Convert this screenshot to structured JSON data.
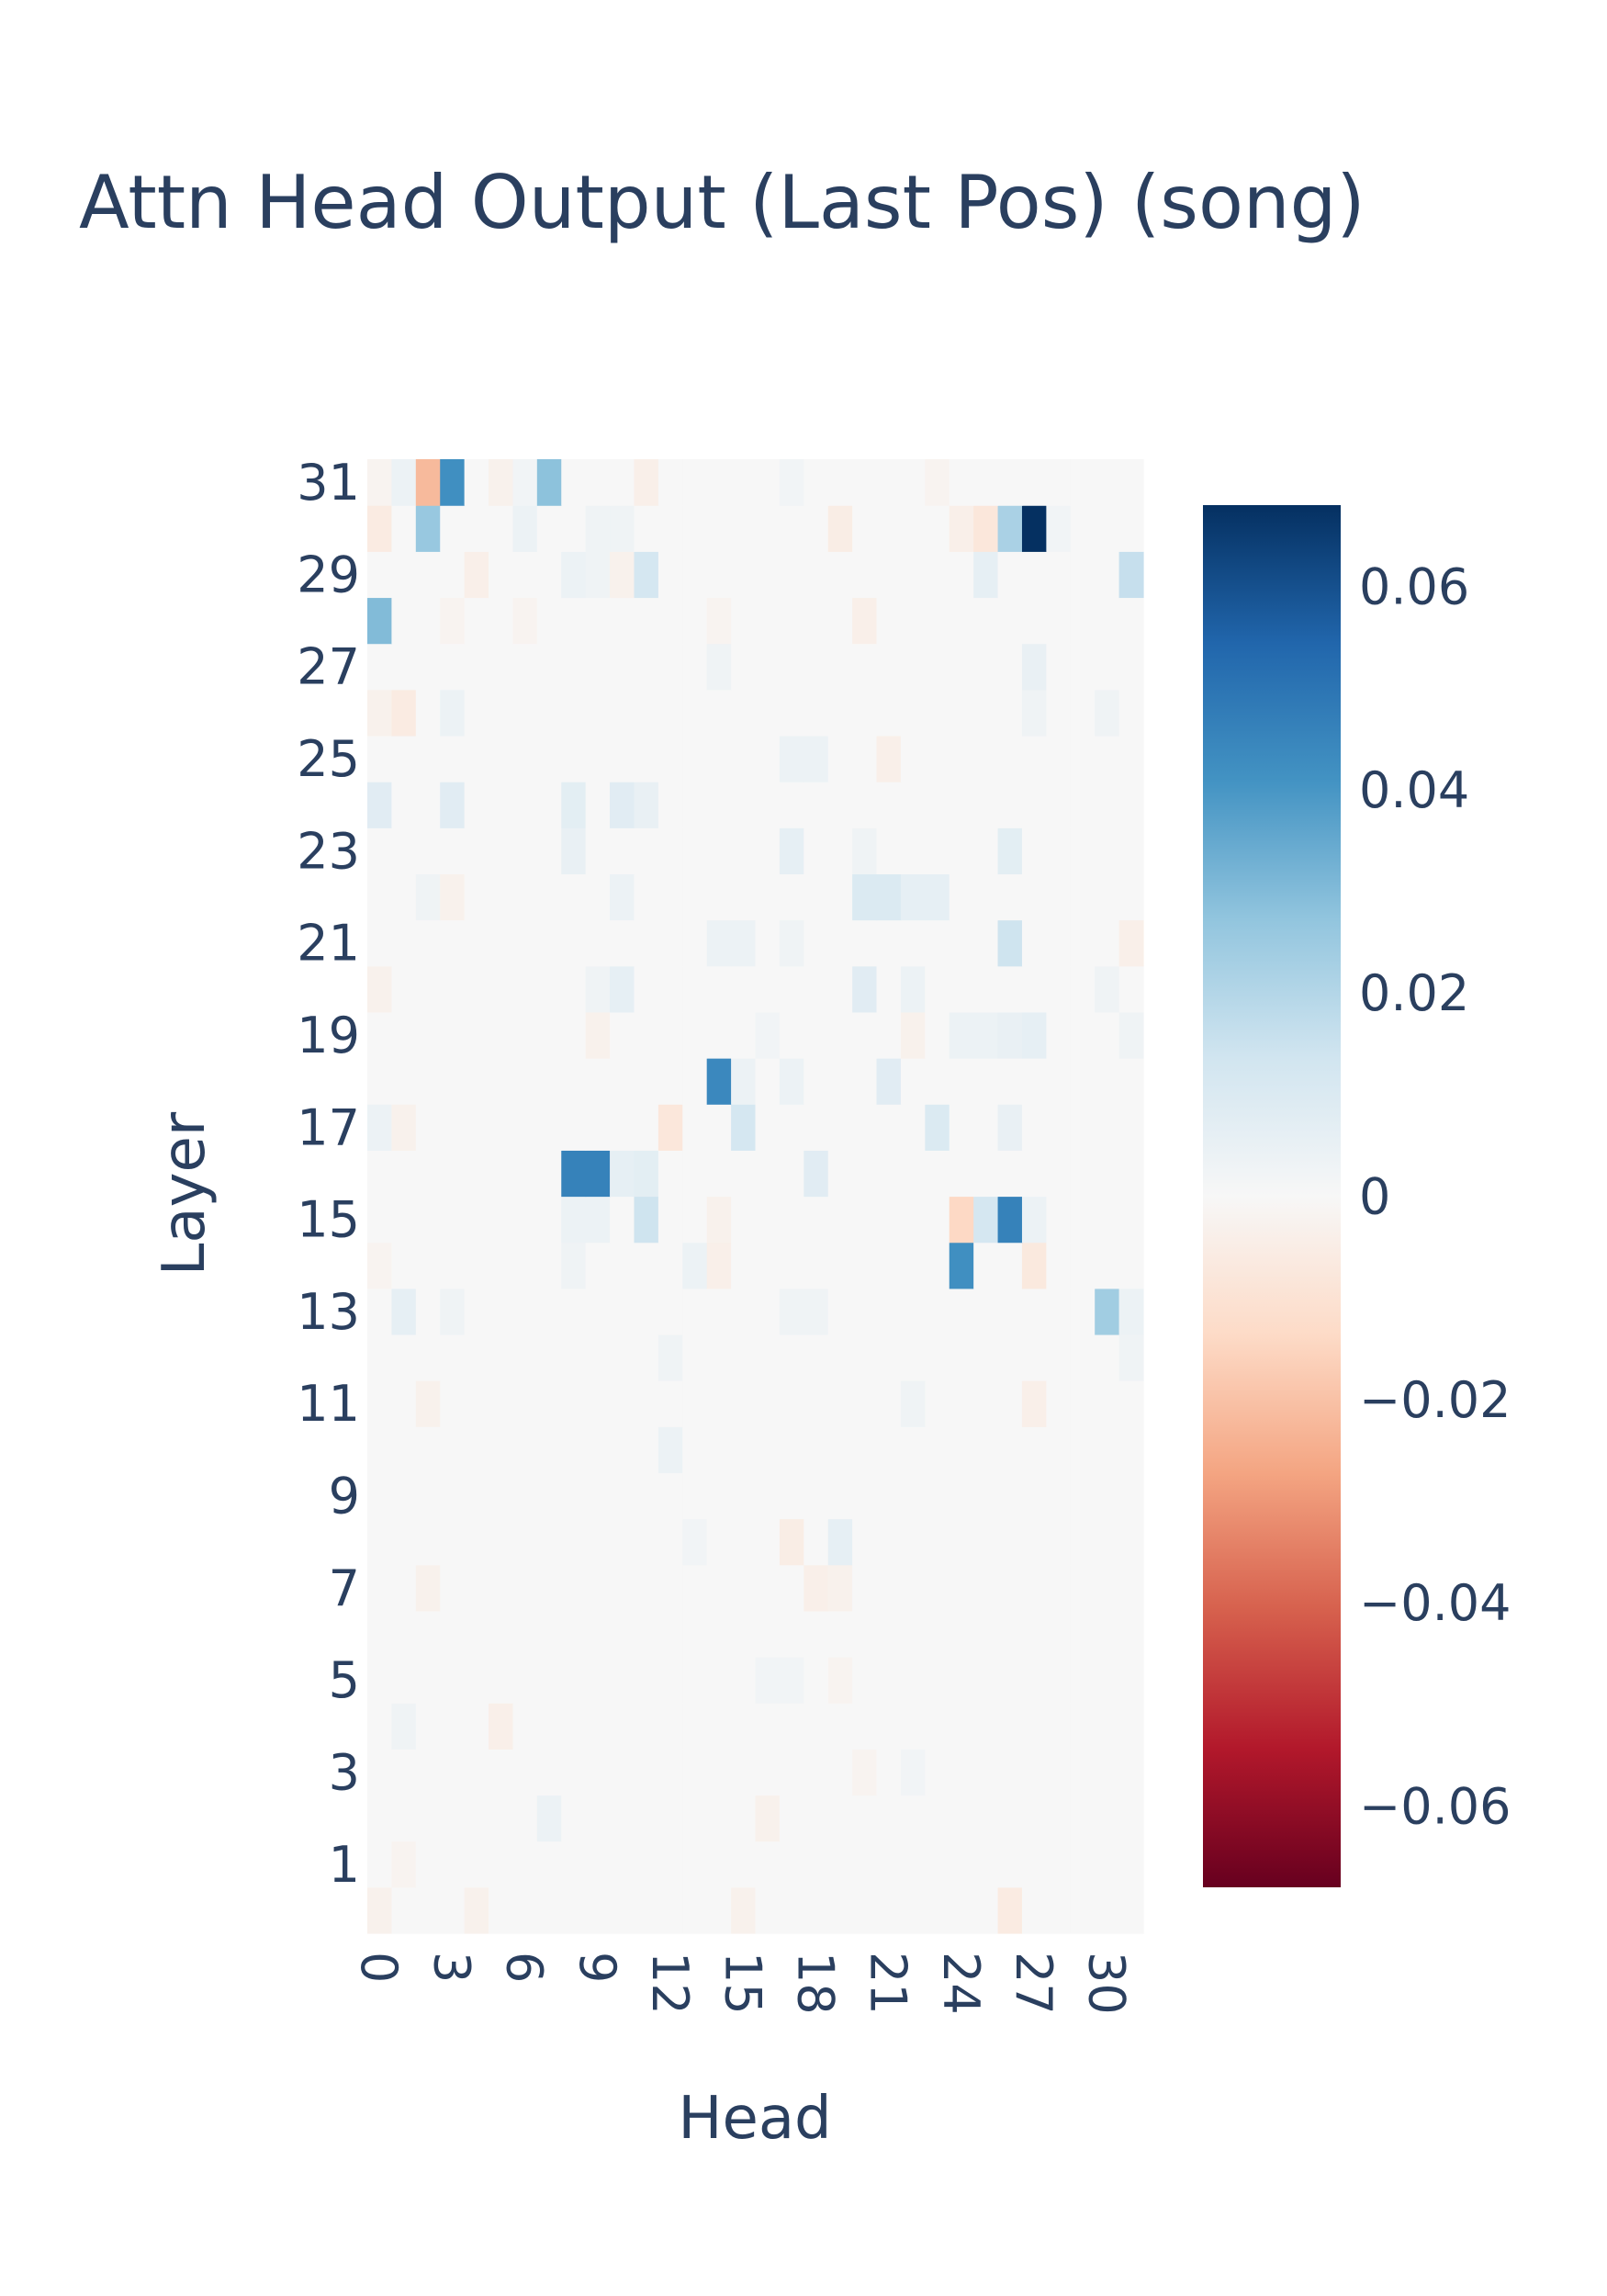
{
  "chart_data": {
    "type": "heatmap",
    "title": "Attn Head Output (Last Pos) (song)",
    "xlabel": "Head",
    "ylabel": "Layer",
    "n_x": 32,
    "n_y": 32,
    "xticks": [
      0,
      3,
      6,
      9,
      12,
      15,
      18,
      21,
      24,
      27,
      30
    ],
    "yticks": [
      1,
      3,
      5,
      7,
      9,
      11,
      13,
      15,
      17,
      19,
      21,
      23,
      25,
      27,
      29,
      31
    ],
    "zrange": [
      -0.068,
      0.068
    ],
    "colorbar_ticks": [
      {
        "value": 0.06,
        "label": "0.06"
      },
      {
        "value": 0.04,
        "label": "0.04"
      },
      {
        "value": 0.02,
        "label": "0.02"
      },
      {
        "value": 0,
        "label": "0"
      },
      {
        "value": -0.02,
        "label": "−0.02"
      },
      {
        "value": -0.04,
        "label": "−0.04"
      },
      {
        "value": -0.06,
        "label": "−0.06"
      }
    ],
    "colorscale": [
      "#67001f",
      "#b2182b",
      "#d6604d",
      "#f4a582",
      "#fddbc7",
      "#f7f7f7",
      "#d1e5f0",
      "#92c5de",
      "#4393c3",
      "#2166ac",
      "#053061"
    ],
    "cells": [
      [
        31,
        0,
        -0.002
      ],
      [
        31,
        1,
        0.004
      ],
      [
        31,
        2,
        -0.022
      ],
      [
        31,
        3,
        0.042
      ],
      [
        31,
        5,
        -0.003
      ],
      [
        31,
        6,
        0.002
      ],
      [
        31,
        7,
        0.028
      ],
      [
        31,
        11,
        -0.004
      ],
      [
        31,
        17,
        0.002
      ],
      [
        31,
        23,
        -0.002
      ],
      [
        30,
        0,
        -0.006
      ],
      [
        30,
        2,
        0.026
      ],
      [
        30,
        6,
        0.004
      ],
      [
        30,
        9,
        0.003
      ],
      [
        30,
        10,
        0.003
      ],
      [
        30,
        19,
        -0.005
      ],
      [
        30,
        24,
        -0.004
      ],
      [
        30,
        25,
        -0.008
      ],
      [
        30,
        26,
        0.022
      ],
      [
        30,
        27,
        0.068
      ],
      [
        30,
        28,
        0.002
      ],
      [
        29,
        4,
        -0.004
      ],
      [
        29,
        8,
        0.004
      ],
      [
        29,
        9,
        0.003
      ],
      [
        29,
        10,
        -0.003
      ],
      [
        29,
        11,
        0.012
      ],
      [
        29,
        25,
        0.006
      ],
      [
        29,
        31,
        0.016
      ],
      [
        28,
        0,
        0.03
      ],
      [
        28,
        3,
        -0.002
      ],
      [
        28,
        6,
        -0.002
      ],
      [
        28,
        14,
        -0.002
      ],
      [
        28,
        20,
        -0.004
      ],
      [
        27,
        14,
        0.003
      ],
      [
        27,
        27,
        0.005
      ],
      [
        26,
        0,
        -0.003
      ],
      [
        26,
        1,
        -0.006
      ],
      [
        26,
        3,
        0.004
      ],
      [
        26,
        27,
        0.003
      ],
      [
        26,
        30,
        0.003
      ],
      [
        25,
        17,
        0.004
      ],
      [
        25,
        18,
        0.004
      ],
      [
        25,
        21,
        -0.004
      ],
      [
        24,
        0,
        0.008
      ],
      [
        24,
        3,
        0.008
      ],
      [
        24,
        8,
        0.007
      ],
      [
        24,
        10,
        0.008
      ],
      [
        24,
        11,
        0.005
      ],
      [
        23,
        8,
        0.005
      ],
      [
        23,
        17,
        0.006
      ],
      [
        23,
        20,
        0.003
      ],
      [
        23,
        26,
        0.007
      ],
      [
        22,
        2,
        0.003
      ],
      [
        22,
        3,
        -0.003
      ],
      [
        22,
        10,
        0.004
      ],
      [
        22,
        20,
        0.01
      ],
      [
        22,
        21,
        0.01
      ],
      [
        22,
        22,
        0.006
      ],
      [
        22,
        23,
        0.006
      ],
      [
        21,
        14,
        0.004
      ],
      [
        21,
        15,
        0.004
      ],
      [
        21,
        17,
        0.003
      ],
      [
        21,
        26,
        0.014
      ],
      [
        21,
        31,
        -0.004
      ],
      [
        20,
        0,
        -0.003
      ],
      [
        20,
        9,
        0.003
      ],
      [
        20,
        10,
        0.006
      ],
      [
        20,
        20,
        0.008
      ],
      [
        20,
        22,
        0.004
      ],
      [
        20,
        30,
        0.003
      ],
      [
        19,
        9,
        -0.003
      ],
      [
        19,
        16,
        0.002
      ],
      [
        19,
        22,
        -0.003
      ],
      [
        19,
        24,
        0.004
      ],
      [
        19,
        25,
        0.004
      ],
      [
        19,
        26,
        0.005
      ],
      [
        19,
        27,
        0.006
      ],
      [
        19,
        31,
        0.003
      ],
      [
        18,
        14,
        0.044
      ],
      [
        18,
        15,
        0.004
      ],
      [
        18,
        17,
        0.004
      ],
      [
        18,
        21,
        0.008
      ],
      [
        17,
        0,
        0.004
      ],
      [
        17,
        1,
        -0.003
      ],
      [
        17,
        12,
        -0.008
      ],
      [
        17,
        15,
        0.012
      ],
      [
        17,
        23,
        0.01
      ],
      [
        17,
        26,
        0.005
      ],
      [
        16,
        8,
        0.046
      ],
      [
        16,
        9,
        0.046
      ],
      [
        16,
        10,
        0.006
      ],
      [
        16,
        11,
        0.007
      ],
      [
        16,
        18,
        0.008
      ],
      [
        15,
        8,
        0.004
      ],
      [
        15,
        9,
        0.004
      ],
      [
        15,
        11,
        0.014
      ],
      [
        15,
        14,
        -0.003
      ],
      [
        15,
        24,
        -0.014
      ],
      [
        15,
        25,
        0.012
      ],
      [
        15,
        26,
        0.046
      ],
      [
        15,
        27,
        0.004
      ],
      [
        14,
        0,
        -0.002
      ],
      [
        14,
        8,
        0.003
      ],
      [
        14,
        13,
        0.004
      ],
      [
        14,
        14,
        -0.004
      ],
      [
        14,
        24,
        0.042
      ],
      [
        14,
        27,
        -0.007
      ],
      [
        13,
        1,
        0.006
      ],
      [
        13,
        3,
        0.003
      ],
      [
        13,
        17,
        0.003
      ],
      [
        13,
        18,
        0.003
      ],
      [
        13,
        30,
        0.024
      ],
      [
        13,
        31,
        0.004
      ],
      [
        12,
        12,
        0.003
      ],
      [
        12,
        31,
        0.003
      ],
      [
        11,
        2,
        -0.003
      ],
      [
        11,
        22,
        0.003
      ],
      [
        11,
        27,
        -0.004
      ],
      [
        10,
        12,
        0.004
      ],
      [
        8,
        17,
        -0.005
      ],
      [
        8,
        19,
        0.006
      ],
      [
        8,
        13,
        0.002
      ],
      [
        7,
        18,
        -0.004
      ],
      [
        7,
        19,
        -0.003
      ],
      [
        7,
        2,
        -0.003
      ],
      [
        5,
        16,
        0.002
      ],
      [
        5,
        17,
        0.002
      ],
      [
        5,
        19,
        -0.002
      ],
      [
        4,
        1,
        0.003
      ],
      [
        4,
        5,
        -0.004
      ],
      [
        3,
        20,
        -0.002
      ],
      [
        3,
        22,
        0.002
      ],
      [
        2,
        7,
        0.004
      ],
      [
        2,
        16,
        -0.003
      ],
      [
        1,
        1,
        -0.002
      ],
      [
        0,
        0,
        -0.003
      ],
      [
        0,
        4,
        -0.003
      ],
      [
        0,
        15,
        -0.003
      ],
      [
        0,
        26,
        -0.006
      ]
    ]
  }
}
